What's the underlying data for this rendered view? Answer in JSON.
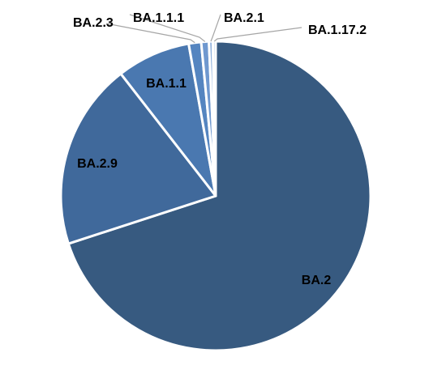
{
  "chart_data": {
    "type": "pie",
    "title": "",
    "categories": [
      "BA.2",
      "BA.2.9",
      "BA.1.1",
      "BA.2.3",
      "BA.1.1.1",
      "BA.2.1",
      "BA.1.17.2"
    ],
    "values": [
      70.0,
      19.5,
      7.7,
      1.3,
      0.8,
      0.4,
      0.3
    ],
    "colors": [
      "#375a80",
      "#40699b",
      "#4a78b0",
      "#5585c0",
      "#6f98cf",
      "#8fb0dc",
      "#b7cde9"
    ],
    "legend": "none",
    "data_labels": "category names",
    "start_angle": "12 o'clock, clockwise"
  }
}
